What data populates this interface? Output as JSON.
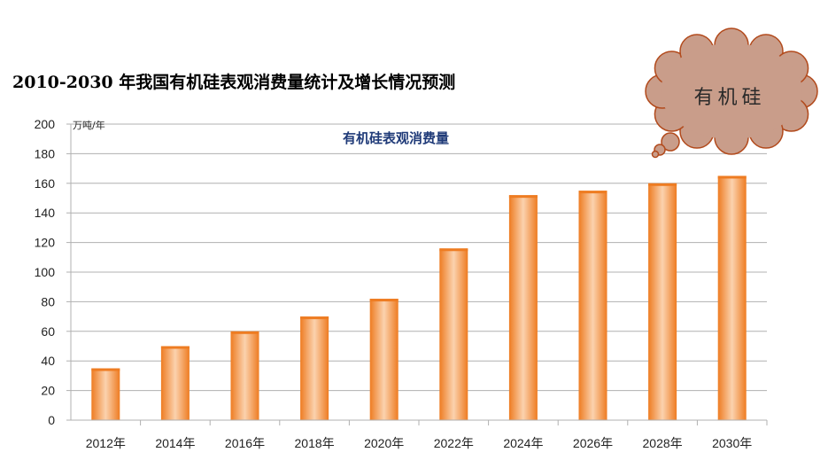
{
  "title": "2010-2030 年我国有机硅表观消费量统计及增长情况预测",
  "cloud_label": "有机硅",
  "colors": {
    "bar_dark": "#ee7c22",
    "bar_light": "#fbd2ae",
    "inner_title": "#1f3a78",
    "cloud_fill": "#c99d8a",
    "cloud_stroke": "#b24a1c",
    "axis": "#b0b0b0"
  },
  "chart_data": {
    "type": "bar",
    "title": "有机硅表观消费量",
    "ylabel": "万吨/年",
    "xlabel": "",
    "categories": [
      "2012年",
      "2014年",
      "2016年",
      "2018年",
      "2020年",
      "2022年",
      "2024年",
      "2026年",
      "2028年",
      "2030年"
    ],
    "values": [
      35,
      50,
      60,
      70,
      82,
      116,
      152,
      155,
      160,
      165
    ],
    "ylim": [
      0,
      200
    ],
    "yticks": [
      0,
      20,
      40,
      60,
      80,
      100,
      120,
      140,
      160,
      180,
      200
    ],
    "grid": true
  }
}
